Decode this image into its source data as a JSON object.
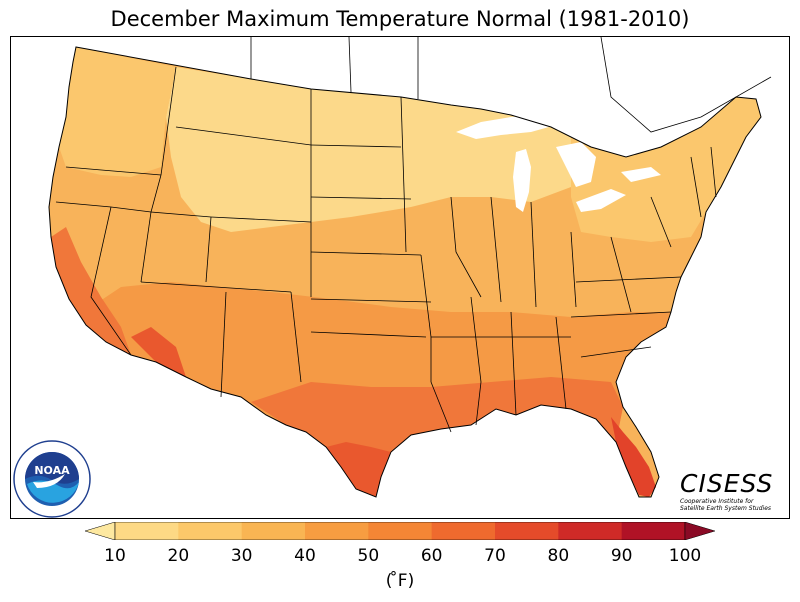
{
  "title": "December Maximum Temperature Normal (1981-2010)",
  "legend": {
    "ticks": [
      "10",
      "20",
      "30",
      "40",
      "50",
      "60",
      "70",
      "80",
      "90",
      "100"
    ],
    "unit": "( ̊F)",
    "colors": [
      "#fde8a0",
      "#fdd985",
      "#fcc86a",
      "#f9b553",
      "#f79d41",
      "#f48635",
      "#ef6a2e",
      "#e54b2a",
      "#cf2a27",
      "#b01226",
      "#8a0a25"
    ]
  },
  "logos": {
    "noaa_text": "NOAA",
    "noaa_ring_top": "NATIONAL OCEANIC AND ATMOSPHERIC ADMINISTRATION",
    "noaa_ring_bottom": "U.S. DEPARTMENT OF COMMERCE",
    "cisess_name": "CISESS",
    "cisess_sub_1": "Cooperative Institute for",
    "cisess_sub_2": "Satellite Earth System Studies"
  },
  "map": {
    "region": "Contiguous United States",
    "colors": {
      "north": "#fcd98a",
      "northcentral": "#fbc76d",
      "central": "#f8b35a",
      "south": "#f59a45",
      "gulf": "#f0773a",
      "hot": "#e9582e",
      "southfl": "#e2432a",
      "water": "#ffffff",
      "line": "#000000"
    }
  }
}
